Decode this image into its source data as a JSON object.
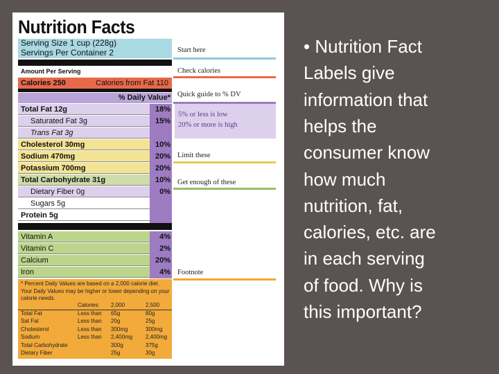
{
  "label": {
    "title": "Nutrition Facts",
    "serving_size": "Serving Size 1 cup (228g)",
    "servings_per_container": "Servings Per Container 2",
    "amount_per_serving": "Amount Per Serving",
    "calories": "Calories 250",
    "calories_from_fat": "Calories from Fat 110",
    "daily_value_header": "% Daily Value*",
    "nutrients": [
      {
        "name": "Total Fat 12g",
        "dv": "18%"
      },
      {
        "name": "Saturated Fat 3g",
        "dv": "15%"
      },
      {
        "name": "Trans Fat 3g"
      },
      {
        "name": "Cholesterol 30mg",
        "dv": "10%"
      },
      {
        "name": "Sodium 470mg",
        "dv": "20%"
      },
      {
        "name": "Potassium 700mg",
        "dv": "20%"
      },
      {
        "name": "Total Carbohydrate 31g",
        "dv": "10%"
      },
      {
        "name": "Dietary Fiber 0g",
        "dv": "0%"
      },
      {
        "name": "Sugars 5g"
      },
      {
        "name": "Protein 5g"
      }
    ],
    "vitamins": [
      {
        "name": "Vitamin A",
        "dv": "4%"
      },
      {
        "name": "Vitamin C",
        "dv": "2%"
      },
      {
        "name": "Calcium",
        "dv": "20%"
      },
      {
        "name": "Iron",
        "dv": "4%"
      }
    ],
    "footnote": "* Percent Daily Values are based on a 2,000 calorie diet. Your Daily Values may be higher or lower depending on your calorie needs.",
    "footnote_table": [
      [
        "",
        "Calories:",
        "2,000",
        "2,500"
      ],
      [
        "Total Fat",
        "Less than",
        "65g",
        "80g"
      ],
      [
        "Sat Fat",
        "Less than",
        "20g",
        "25g"
      ],
      [
        "Cholesterol",
        "Less than",
        "300mg",
        "300mg"
      ],
      [
        "Sodium",
        "Less than",
        "2,400mg",
        "2,400mg"
      ],
      [
        "Total Carbohydrate",
        "",
        "300g",
        "375g"
      ],
      [
        "Dietary Fiber",
        "",
        "25g",
        "30g"
      ]
    ]
  },
  "annotations": [
    "Start here",
    "Check calories",
    "Quick guide to % DV",
    "5% or less is low",
    "20% or more is high",
    "Limit these",
    "Get enough of these",
    "Footnote"
  ],
  "bullet_lines": [
    "• Nutrition Fact",
    "Labels give",
    "information that",
    "helps the",
    "consumer know",
    "how much",
    "nutrition, fat,",
    "calories, etc. are",
    "in each serving",
    "of food. Why is",
    "this important?"
  ]
}
